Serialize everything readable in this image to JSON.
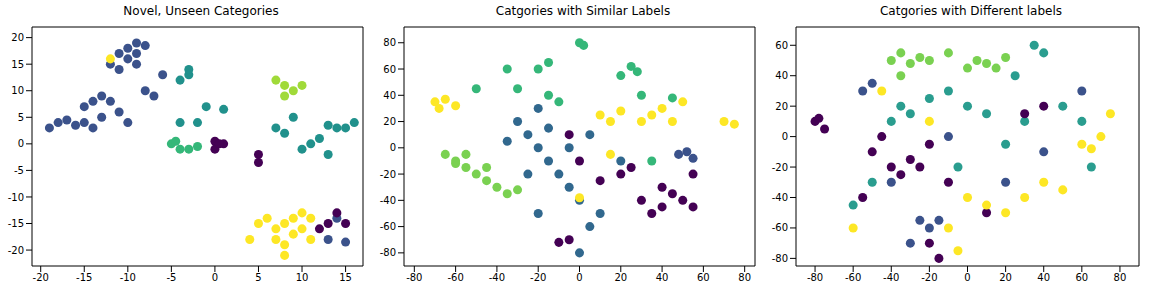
{
  "chart_data": [
    {
      "type": "scatter",
      "title": "Novel, Unseen Categories",
      "marker": "circle",
      "xlim": [
        -21,
        17
      ],
      "xticks": [
        -20,
        -15,
        -10,
        -5,
        0,
        5,
        10,
        15
      ],
      "ylim": [
        -23,
        22
      ],
      "yticks": [
        -20,
        -15,
        -10,
        -5,
        0,
        5,
        10,
        15,
        20
      ],
      "series": [
        {
          "color": "#3b528b",
          "x": [
            -19,
            -18,
            -17,
            -16,
            -15,
            -14,
            -13,
            -15,
            -14,
            -13,
            -12,
            -11,
            -10,
            -12,
            -11,
            -10,
            -9,
            -10,
            -8,
            -9,
            -11,
            -9,
            -7,
            -8,
            -6,
            14,
            13,
            15
          ],
          "y": [
            3,
            4,
            4.5,
            3.5,
            4,
            3,
            5,
            7,
            8,
            9,
            8,
            6,
            4,
            15,
            17,
            18,
            17,
            16,
            18.5,
            19,
            14,
            15,
            9,
            10,
            13,
            -14,
            -18,
            -18.5
          ]
        },
        {
          "color": "#21918c",
          "x": [
            -4,
            -3,
            -2,
            -1,
            1,
            7,
            8,
            9,
            10,
            11,
            12,
            13,
            14,
            15,
            13,
            16,
            -4,
            -3
          ],
          "y": [
            4,
            13,
            4,
            7,
            6.5,
            3,
            2,
            5,
            -1,
            0,
            1,
            -2,
            3,
            3,
            3.5,
            4,
            12,
            14
          ]
        },
        {
          "color": "#35b779",
          "x": [
            -5,
            -4,
            -3,
            -4.5,
            -2
          ],
          "y": [
            0,
            -1,
            -1,
            0.5,
            -0.5
          ]
        },
        {
          "color": "#a0da39",
          "x": [
            7,
            8,
            9,
            8,
            10
          ],
          "y": [
            12,
            11,
            10,
            9,
            11
          ]
        },
        {
          "color": "#440154",
          "x": [
            0,
            1,
            0,
            5,
            5,
            14,
            13,
            15,
            12,
            0.5
          ],
          "y": [
            -1,
            0,
            0.5,
            -2,
            -3.5,
            -13,
            -15,
            -15,
            -16,
            0
          ]
        },
        {
          "color": "#fde725",
          "x": [
            4,
            5,
            6,
            7,
            8,
            9,
            10,
            11,
            7,
            8,
            9,
            10,
            8,
            11,
            -12
          ],
          "y": [
            -18,
            -15,
            -14,
            -16,
            -15,
            -14,
            -13,
            -14,
            -18,
            -19,
            -17,
            -16,
            -21,
            -18,
            16
          ]
        }
      ]
    },
    {
      "type": "scatter",
      "title": "Catgories with Similar Labels",
      "marker": "circle",
      "xlim": [
        -85,
        85
      ],
      "xticks": [
        -80,
        -60,
        -40,
        -20,
        0,
        20,
        40,
        60,
        80
      ],
      "ylim": [
        -90,
        92
      ],
      "yticks": [
        -80,
        -60,
        -40,
        -20,
        0,
        20,
        40,
        60,
        80
      ],
      "series": [
        {
          "color": "#31688e",
          "x": [
            -30,
            -25,
            -20,
            -15,
            -10,
            -5,
            0,
            -20,
            -5,
            5,
            10,
            -20,
            -25,
            -35,
            5,
            -15,
            0,
            20
          ],
          "y": [
            20,
            10,
            0,
            -10,
            -20,
            -30,
            -40,
            -50,
            0,
            10,
            -50,
            30,
            -20,
            5,
            -60,
            15,
            -80,
            -10
          ]
        },
        {
          "color": "#35b779",
          "x": [
            0,
            2,
            -15,
            -20,
            25,
            28,
            20,
            -35,
            30,
            -15,
            -10,
            -50,
            45,
            35,
            -30
          ],
          "y": [
            80,
            78,
            65,
            60,
            62,
            58,
            55,
            60,
            40,
            40,
            35,
            45,
            38,
            -10,
            45
          ]
        },
        {
          "color": "#7ad151",
          "x": [
            -65,
            -60,
            -55,
            -50,
            -45,
            -40,
            -35,
            -30,
            -55,
            -45,
            -60
          ],
          "y": [
            -5,
            -10,
            -15,
            -20,
            -25,
            -30,
            -35,
            -32,
            -5,
            -15,
            -12
          ]
        },
        {
          "color": "#3b528b",
          "x": [
            48,
            52,
            55
          ],
          "y": [
            -5,
            -3,
            -8
          ]
        },
        {
          "color": "#440154",
          "x": [
            30,
            40,
            45,
            50,
            55,
            35,
            40,
            20,
            25,
            -10,
            -5,
            0,
            -5,
            10,
            55
          ],
          "y": [
            -40,
            -45,
            -35,
            -40,
            -45,
            -50,
            -30,
            -20,
            -15,
            -72,
            -70,
            -10,
            10,
            -25,
            -20
          ]
        },
        {
          "color": "#fde725",
          "x": [
            -70,
            -65,
            -60,
            -68,
            10,
            15,
            20,
            30,
            35,
            40,
            45,
            50,
            70,
            75,
            15,
            0
          ],
          "y": [
            35,
            37,
            32,
            30,
            25,
            20,
            28,
            20,
            25,
            30,
            20,
            35,
            20,
            18,
            -5,
            -38
          ]
        }
      ]
    },
    {
      "type": "scatter",
      "title": "Catgories with Different labels",
      "marker": "circle",
      "xlim": [
        -90,
        90
      ],
      "xticks": [
        -80,
        -60,
        -40,
        -20,
        0,
        20,
        40,
        60,
        80
      ],
      "ylim": [
        -85,
        72
      ],
      "yticks": [
        -80,
        -60,
        -40,
        -20,
        0,
        20,
        40,
        60
      ],
      "series": [
        {
          "color": "#7ad151",
          "x": [
            -40,
            -35,
            -30,
            -25,
            -20,
            0,
            5,
            10,
            15,
            -35,
            20,
            -10
          ],
          "y": [
            50,
            55,
            48,
            52,
            50,
            45,
            50,
            48,
            45,
            40,
            52,
            55
          ]
        },
        {
          "color": "#2a9d8f",
          "x": [
            -40,
            -35,
            -30,
            -20,
            -10,
            0,
            10,
            20,
            30,
            35,
            40,
            50,
            60,
            -50,
            -5,
            25,
            -60,
            65
          ],
          "y": [
            10,
            20,
            15,
            25,
            30,
            20,
            15,
            -5,
            10,
            60,
            55,
            20,
            10,
            -30,
            -20,
            40,
            -45,
            -20
          ]
        },
        {
          "color": "#3b528b",
          "x": [
            -55,
            -50,
            -25,
            -20,
            -15,
            -10,
            -30,
            40,
            20,
            60,
            -40
          ],
          "y": [
            30,
            35,
            -55,
            -60,
            -55,
            0,
            -70,
            -10,
            -30,
            30,
            -30
          ]
        },
        {
          "color": "#440154",
          "x": [
            -80,
            -75,
            -78,
            -40,
            -35,
            -30,
            -25,
            -50,
            -20,
            -15,
            -20,
            -55,
            -45,
            10,
            30,
            40,
            -10
          ],
          "y": [
            10,
            5,
            12,
            -20,
            -25,
            -15,
            -20,
            -10,
            -5,
            -80,
            -70,
            -40,
            0,
            -50,
            15,
            20,
            -30
          ]
        },
        {
          "color": "#fde725",
          "x": [
            -20,
            0,
            10,
            20,
            30,
            40,
            60,
            70,
            65,
            50,
            -10,
            -45,
            -60,
            75,
            -5
          ],
          "y": [
            10,
            -40,
            -45,
            -50,
            -40,
            -30,
            -5,
            0,
            -8,
            -35,
            -60,
            30,
            -60,
            15,
            -75
          ]
        }
      ]
    }
  ]
}
